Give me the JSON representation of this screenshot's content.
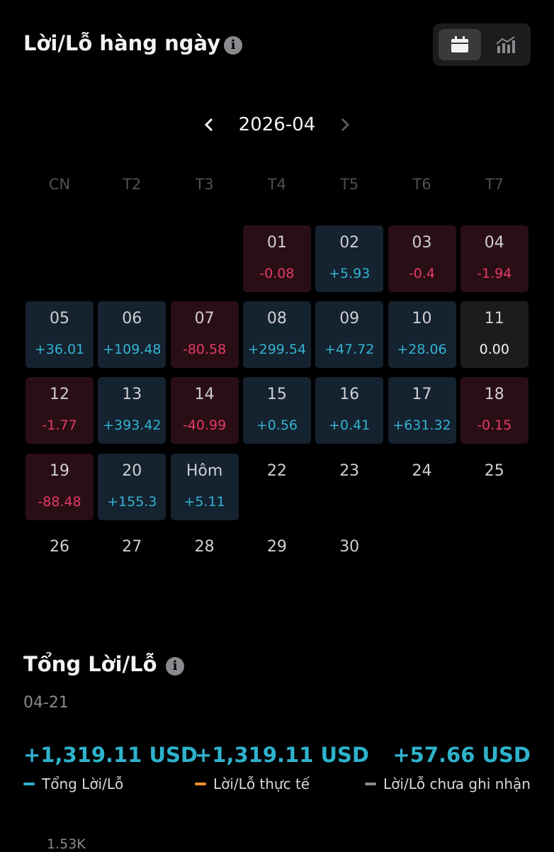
{
  "header": {
    "title": "Lời/Lỗ hàng ngày"
  },
  "calendar": {
    "month": "2026-04",
    "weekdays": [
      "CN",
      "T2",
      "T3",
      "T4",
      "T5",
      "T6",
      "T7"
    ],
    "weeks": [
      [
        {
          "day": "01",
          "pnl": "-0.08"
        },
        {
          "day": "02",
          "pnl": "+5.93"
        },
        {
          "day": "03",
          "pnl": "-0.4"
        },
        {
          "day": "04",
          "pnl": "-1.94"
        }
      ],
      [
        {
          "day": "05",
          "pnl": "+36.01"
        },
        {
          "day": "06",
          "pnl": "+109.48"
        },
        {
          "day": "07",
          "pnl": "-80.58"
        },
        {
          "day": "08",
          "pnl": "+299.54"
        },
        {
          "day": "09",
          "pnl": "+47.72"
        },
        {
          "day": "10",
          "pnl": "+28.06"
        },
        {
          "day": "11",
          "pnl": "0.00"
        }
      ],
      [
        {
          "day": "12",
          "pnl": "-1.77"
        },
        {
          "day": "13",
          "pnl": "+393.42"
        },
        {
          "day": "14",
          "pnl": "-40.99"
        },
        {
          "day": "15",
          "pnl": "+0.56"
        },
        {
          "day": "16",
          "pnl": "+0.41"
        },
        {
          "day": "17",
          "pnl": "+631.32"
        },
        {
          "day": "18",
          "pnl": "-0.15"
        }
      ],
      [
        {
          "day": "19",
          "pnl": "-88.48"
        },
        {
          "day": "20",
          "pnl": "+155.3"
        },
        {
          "day": "Hôm",
          "pnl": "+5.11"
        },
        {
          "day": "22"
        },
        {
          "day": "23"
        },
        {
          "day": "24"
        },
        {
          "day": "25"
        }
      ],
      [
        {
          "day": "26"
        },
        {
          "day": "27"
        },
        {
          "day": "28"
        },
        {
          "day": "29"
        },
        {
          "day": "30"
        }
      ]
    ]
  },
  "summary": {
    "title": "Tổng Lời/Lỗ",
    "date": "04-21",
    "items": [
      {
        "value": "+1,319.11 USD",
        "label": "Tổng Lời/Lỗ",
        "color": "#2fb2cc"
      },
      {
        "value": "+1,319.11 USD",
        "label": "Lời/Lỗ thực tế",
        "color": "#f0902c"
      },
      {
        "value": "+57.66 USD",
        "label": "Lời/Lỗ chưa ghi nhận",
        "color": "#8a8a8e"
      }
    ],
    "axis_label": "1.53K"
  }
}
